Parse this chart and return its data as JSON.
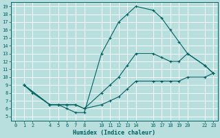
{
  "xlabel": "Humidex (Indice chaleur)",
  "bg_color": "#b8dede",
  "grid_color": "#ffffff",
  "line_color": "#006060",
  "xlim": [
    -0.5,
    23.5
  ],
  "ylim": [
    4.5,
    19.5
  ],
  "xticks": [
    0,
    1,
    2,
    4,
    5,
    6,
    7,
    8,
    10,
    11,
    12,
    13,
    14,
    16,
    17,
    18,
    19,
    20,
    22,
    23
  ],
  "yticks": [
    5,
    6,
    7,
    8,
    9,
    10,
    11,
    12,
    13,
    14,
    15,
    16,
    17,
    18,
    19
  ],
  "line1_x": [
    1,
    2,
    4,
    5,
    6,
    7,
    8,
    10,
    11,
    12,
    13,
    14,
    16,
    17,
    18,
    19,
    20,
    22,
    23
  ],
  "line1_y": [
    9,
    8,
    6.5,
    6.5,
    6.0,
    5.5,
    5.5,
    13.0,
    15.0,
    17.0,
    18.0,
    19.0,
    18.5,
    17.5,
    16.0,
    14.5,
    13.0,
    11.5,
    10.5
  ],
  "line2_x": [
    1,
    4,
    5,
    6,
    7,
    8,
    10,
    11,
    12,
    13,
    14,
    16,
    17,
    18,
    19,
    20,
    22,
    23
  ],
  "line2_y": [
    9,
    6.5,
    6.5,
    6.5,
    6.5,
    6.0,
    8.0,
    9.0,
    10.0,
    11.5,
    13.0,
    13.0,
    12.5,
    12.0,
    12.0,
    13.0,
    11.5,
    10.5
  ],
  "line3_x": [
    1,
    4,
    5,
    6,
    7,
    8,
    10,
    11,
    12,
    13,
    14,
    16,
    17,
    18,
    19,
    20,
    22,
    23
  ],
  "line3_y": [
    9,
    6.5,
    6.5,
    6.5,
    6.5,
    6.0,
    6.5,
    7.0,
    7.5,
    8.5,
    9.5,
    9.5,
    9.5,
    9.5,
    9.5,
    10.0,
    10.0,
    10.5
  ]
}
